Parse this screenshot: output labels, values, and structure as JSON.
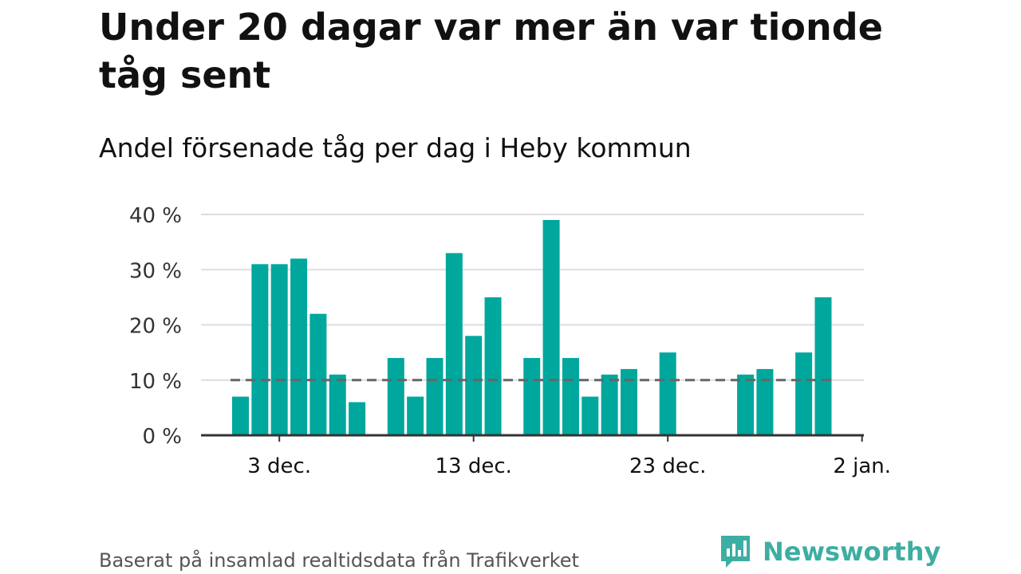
{
  "header": {
    "title": "Under 20 dagar var mer än var tionde tåg sent",
    "subtitle": "Andel försenade tåg per dag i Heby kommun"
  },
  "footer": {
    "source": "Baserat på insamlad realtidsdata från Trafikverket",
    "logo_text": "Newsworthy",
    "logo_icon": "bar-chart-speech-bubble-icon"
  },
  "colors": {
    "bar": "#00a79d",
    "reference_line": "#666666",
    "grid": "#dddddd",
    "axis": "#333333",
    "logo": "#3daea2"
  },
  "chart_data": {
    "type": "bar",
    "title": "Under 20 dagar var mer än var tionde tåg sent",
    "subtitle": "Andel försenade tåg per dag i Heby kommun",
    "xlabel": "",
    "ylabel": "",
    "x_unit": "day (dec–jan)",
    "x": [
      1,
      2,
      3,
      4,
      5,
      6,
      7,
      8,
      9,
      10,
      11,
      12,
      13,
      14,
      15,
      16,
      17,
      18,
      19,
      20,
      21,
      22,
      23,
      24,
      25,
      26,
      27,
      28,
      29,
      30,
      31
    ],
    "values": [
      7,
      31,
      31,
      32,
      22,
      11,
      6,
      null,
      14,
      7,
      14,
      33,
      18,
      25,
      null,
      14,
      39,
      14,
      7,
      11,
      12,
      null,
      15,
      null,
      null,
      null,
      11,
      12,
      null,
      15,
      25
    ],
    "ylim": [
      0,
      40
    ],
    "yticks": [
      0,
      10,
      20,
      30,
      40
    ],
    "ytick_labels": [
      "0 %",
      "10 %",
      "20 %",
      "30 %",
      "40 %"
    ],
    "xticks": [
      3,
      13,
      23,
      33
    ],
    "xtick_labels": [
      "3 dec.",
      "13 dec.",
      "23 dec.",
      "2 jan."
    ],
    "reference_line": {
      "value": 10,
      "style": "dashed"
    },
    "grid": true,
    "legend": "none"
  }
}
